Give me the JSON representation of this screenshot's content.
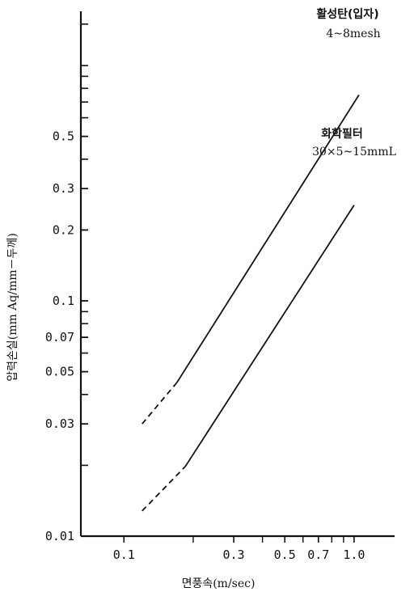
{
  "chart_data": {
    "type": "line",
    "title": "",
    "xlabel": "면풍속(m/sec)",
    "ylabel": "압력손실(mm Aq/mm－두께)",
    "x_scale": "log",
    "y_scale": "log",
    "xlim": [
      0.065,
      1.5
    ],
    "ylim": [
      0.01,
      1.7
    ],
    "grid": false,
    "x_ticks": [
      {
        "value": 0.1,
        "label": "0.1"
      },
      {
        "value": 0.3,
        "label": "0.3"
      },
      {
        "value": 0.5,
        "label": "0.5"
      },
      {
        "value": 0.7,
        "label": "0.7"
      },
      {
        "value": 1.0,
        "label": "1.0"
      }
    ],
    "x_minor_ticks": [
      0.2,
      0.4,
      0.6,
      0.8,
      0.9
    ],
    "y_ticks": [
      {
        "value": 0.01,
        "label": "0.01"
      },
      {
        "value": 0.03,
        "label": "0.03"
      },
      {
        "value": 0.05,
        "label": "0.05"
      },
      {
        "value": 0.07,
        "label": "0.07"
      },
      {
        "value": 0.1,
        "label": "0.1"
      },
      {
        "value": 0.2,
        "label": "0.2"
      },
      {
        "value": 0.3,
        "label": "0.3"
      },
      {
        "value": 0.5,
        "label": "0.5"
      }
    ],
    "y_minor_ticks": [
      0.02,
      0.04,
      0.06,
      0.08,
      0.09,
      0.4,
      0.6,
      0.7,
      0.8,
      0.9,
      1.0,
      1.5
    ],
    "series": [
      {
        "name": "",
        "dashed_segment": {
          "x": [
            0.12,
            0.17
          ],
          "y": [
            0.03,
            0.045
          ]
        },
        "solid_segment": {
          "x": [
            0.17,
            1.05
          ],
          "y": [
            0.045,
            0.75
          ]
        },
        "annotation": [
          "활성탄(입자)",
          "4~8mesh"
        ]
      },
      {
        "name": "",
        "dashed_segment": {
          "x": [
            0.12,
            0.185
          ],
          "y": [
            0.0128,
            0.0198
          ]
        },
        "solid_segment": {
          "x": [
            0.185,
            1.0
          ],
          "y": [
            0.0198,
            0.255
          ]
        },
        "annotation": [
          "화학필터",
          "30×5~15mmL"
        ]
      }
    ]
  }
}
